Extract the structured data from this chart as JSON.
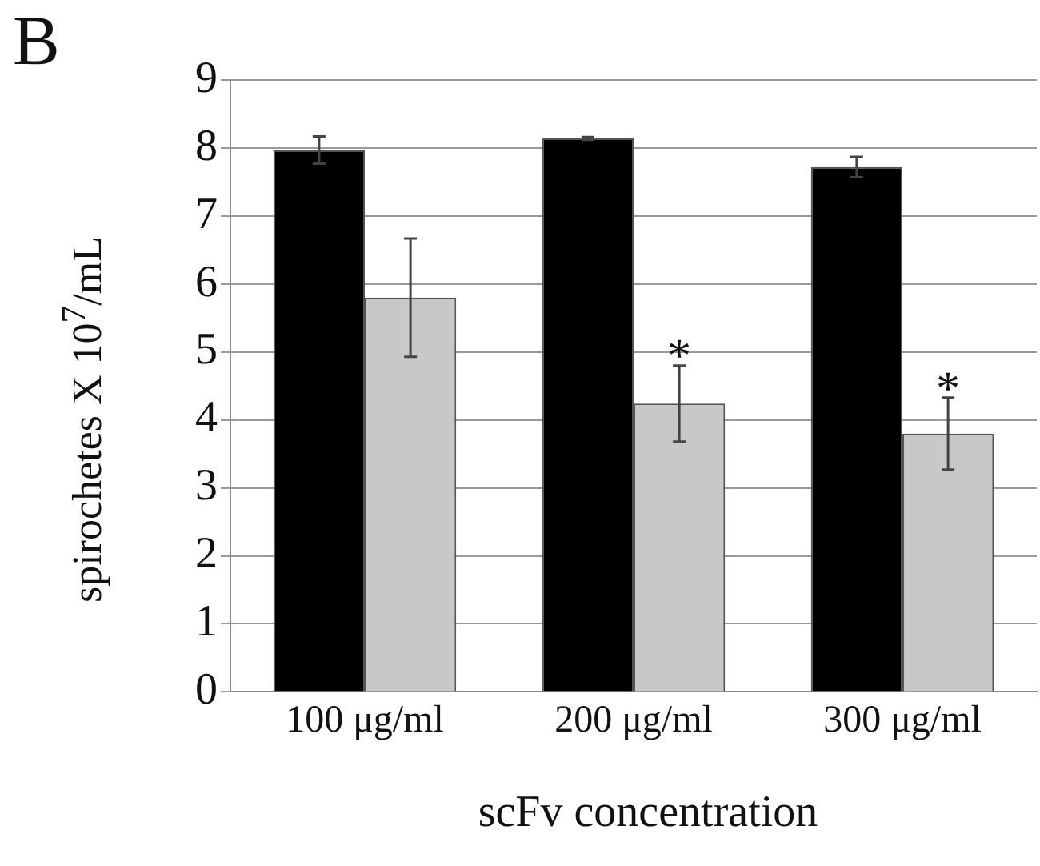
{
  "chart_data": {
    "type": "bar",
    "ylabel": "spirochetes X 10$^{7}$/mL",
    "xlabel": "scFv concentration",
    "categories": [
      "100 μg/ml",
      "200 μg/ml",
      "300 μg/ml"
    ],
    "series": [
      {
        "color": "#000000",
        "values": [
          7.97,
          8.14,
          7.72
        ],
        "errors": [
          0.2,
          0.02,
          0.15
        ]
      },
      {
        "color": "#c8c8c8",
        "values": [
          5.8,
          4.24,
          3.8
        ],
        "errors": [
          0.87,
          0.56,
          0.53
        ]
      }
    ],
    "ylim": [
      0,
      9
    ],
    "yticks": [
      0,
      1,
      2,
      3,
      4,
      5,
      6,
      7,
      8,
      9
    ],
    "grid": "y",
    "legend": false,
    "annotations": [
      "B",
      {
        "text": "*",
        "x": "200 μg/ml",
        "y": 4.81
      },
      {
        "text": "*",
        "x": "300 μg/ml",
        "y": 4.33
      }
    ]
  }
}
